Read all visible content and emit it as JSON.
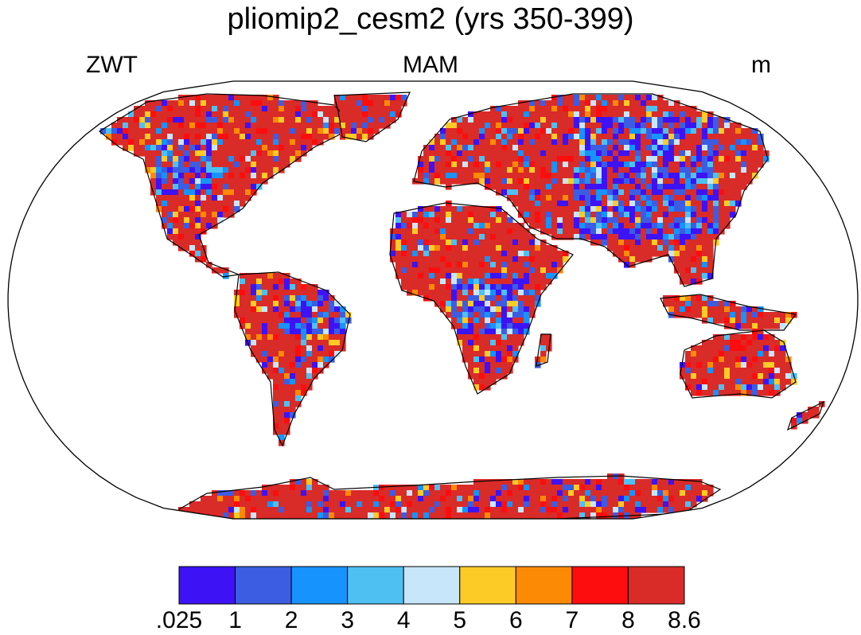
{
  "title": "pliomip2_cesm2 (yrs 350-399)",
  "left_label": "ZWT",
  "center_label": "MAM",
  "right_label": "m",
  "colorbar": {
    "colors": [
      "#3d13f5",
      "#3c5de2",
      "#1793fd",
      "#4ec0f2",
      "#c7e6f9",
      "#fdcb25",
      "#fd8a05",
      "#fd0d0d",
      "#d92b28"
    ],
    "labels": [
      ".025",
      "1",
      "2",
      "3",
      "4",
      "5",
      "6",
      "7",
      "8",
      "8.6"
    ]
  },
  "colors": {
    "ocean": "#ffffff",
    "coast": "#000000"
  }
}
